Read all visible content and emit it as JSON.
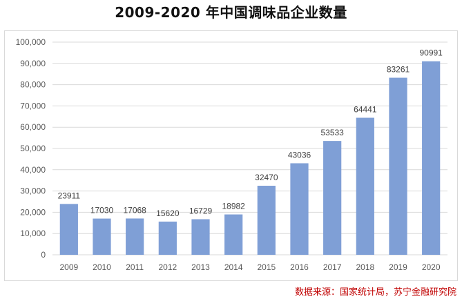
{
  "chart_data": {
    "type": "bar",
    "title": "2009-2020 年中国调味品企业数量",
    "categories": [
      "2009",
      "2010",
      "2011",
      "2012",
      "2013",
      "2014",
      "2015",
      "2016",
      "2017",
      "2018",
      "2019",
      "2020"
    ],
    "values": [
      23911,
      17030,
      17068,
      15620,
      16729,
      18982,
      32470,
      43036,
      53533,
      64441,
      83261,
      90991
    ],
    "value_labels": [
      "23911",
      "17030",
      "17068",
      "15620",
      "16729",
      "18982",
      "32470",
      "43036",
      "53533",
      "64441",
      "83261",
      "90991"
    ],
    "y_ticks": [
      0,
      10000,
      20000,
      30000,
      40000,
      50000,
      60000,
      70000,
      80000,
      90000,
      100000
    ],
    "y_tick_labels": [
      "0",
      "10,000",
      "20,000",
      "30,000",
      "40,000",
      "50,000",
      "60,000",
      "70,000",
      "80,000",
      "90,000",
      "100,000"
    ],
    "ylim": [
      0,
      100000
    ],
    "xlabel": "",
    "ylabel": "",
    "grid": true,
    "legend": "none",
    "bar_color": "#7f9fd6",
    "grid_color": "#d9d9d9"
  },
  "source_note": "数据来源：国家统计局，苏宁金融研究院"
}
